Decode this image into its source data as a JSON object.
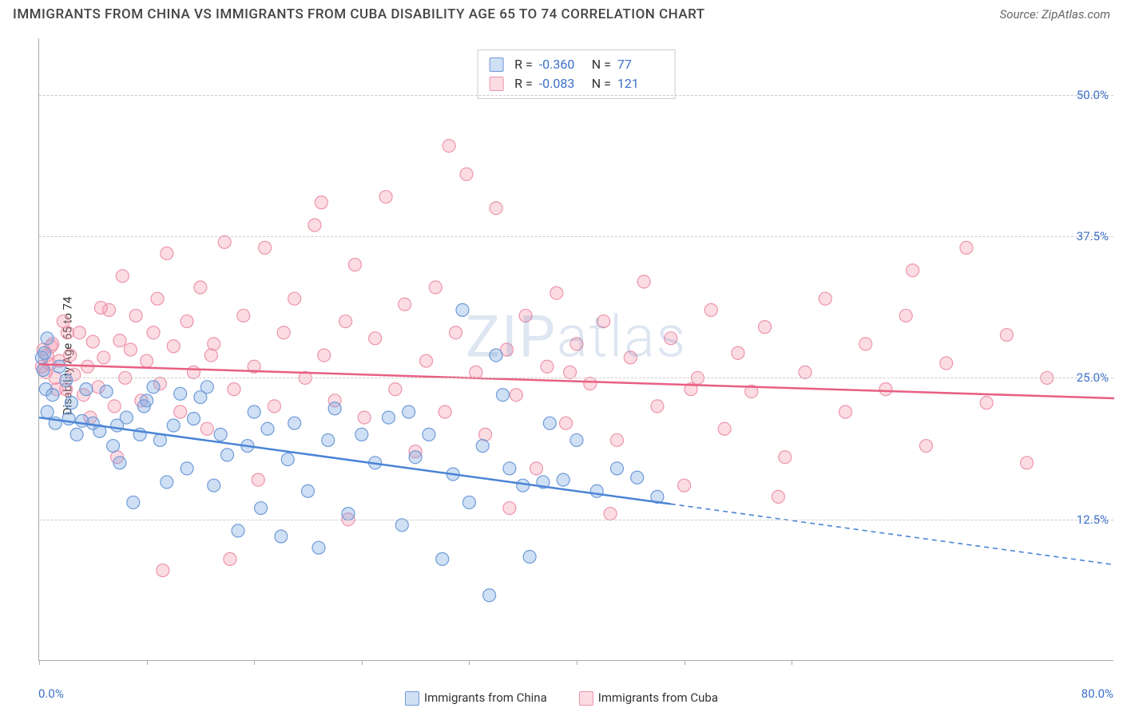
{
  "header": {
    "title": "IMMIGRANTS FROM CHINA VS IMMIGRANTS FROM CUBA DISABILITY AGE 65 TO 74 CORRELATION CHART",
    "source_prefix": "Source: ",
    "source_name": "ZipAtlas.com"
  },
  "watermark": {
    "zip": "ZIP",
    "atlas": "atlas"
  },
  "chart": {
    "type": "scatter",
    "ylabel": "Disability Age 65 to 74",
    "xlim": [
      0,
      80
    ],
    "ylim": [
      0,
      55
    ],
    "x_label_min": "0.0%",
    "x_label_max": "80.0%",
    "xtick_positions": [
      0,
      8,
      16,
      24,
      32,
      40,
      48,
      56
    ],
    "yticks": [
      {
        "value": 12.5,
        "label": "12.5%"
      },
      {
        "value": 25.0,
        "label": "25.0%"
      },
      {
        "value": 37.5,
        "label": "37.5%"
      },
      {
        "value": 50.0,
        "label": "50.0%"
      }
    ],
    "background_color": "#ffffff",
    "grid_color": "#cccccc",
    "axis_color": "#aaaaaa",
    "tick_label_color": "#3b70c9",
    "series": [
      {
        "name": "Immigrants from China",
        "color": "#4a84d6",
        "fill": "rgba(128,170,225,0.38)",
        "stroke": "#6f9bd8",
        "marker_radius": 8,
        "r_value": "-0.360",
        "n_value": "77",
        "trend": {
          "y_at_x0": 21.5,
          "y_at_x80": 8.5,
          "solid_until_x": 47
        },
        "points": [
          [
            0.2,
            26.8
          ],
          [
            0.3,
            25.7
          ],
          [
            0.4,
            27.2
          ],
          [
            0.5,
            24.0
          ],
          [
            0.6,
            28.5
          ],
          [
            0.6,
            22.0
          ],
          [
            1.0,
            23.5
          ],
          [
            1.2,
            21.0
          ],
          [
            1.5,
            26.0
          ],
          [
            2.0,
            24.8
          ],
          [
            2.2,
            21.4
          ],
          [
            2.4,
            22.8
          ],
          [
            2.8,
            20.0
          ],
          [
            3.2,
            21.2
          ],
          [
            3.5,
            24.0
          ],
          [
            4.0,
            21.0
          ],
          [
            4.5,
            20.3
          ],
          [
            5.0,
            23.8
          ],
          [
            5.5,
            19.0
          ],
          [
            5.8,
            20.8
          ],
          [
            6.0,
            17.5
          ],
          [
            6.5,
            21.5
          ],
          [
            7.0,
            14.0
          ],
          [
            7.5,
            20.0
          ],
          [
            8.0,
            23.0
          ],
          [
            8.5,
            24.2
          ],
          [
            9.0,
            19.5
          ],
          [
            9.5,
            15.8
          ],
          [
            10.0,
            20.8
          ],
          [
            10.5,
            23.6
          ],
          [
            11.0,
            17.0
          ],
          [
            11.5,
            21.4
          ],
          [
            12.0,
            23.3
          ],
          [
            13.0,
            15.5
          ],
          [
            13.5,
            20.0
          ],
          [
            14.0,
            18.2
          ],
          [
            14.8,
            11.5
          ],
          [
            15.5,
            19.0
          ],
          [
            16.0,
            22.0
          ],
          [
            16.5,
            13.5
          ],
          [
            17.0,
            20.5
          ],
          [
            18.0,
            11.0
          ],
          [
            18.5,
            17.8
          ],
          [
            19.0,
            21.0
          ],
          [
            20.0,
            15.0
          ],
          [
            20.8,
            10.0
          ],
          [
            21.5,
            19.5
          ],
          [
            22.0,
            22.3
          ],
          [
            23.0,
            13.0
          ],
          [
            24.0,
            20.0
          ],
          [
            25.0,
            17.5
          ],
          [
            26.0,
            21.5
          ],
          [
            27.0,
            12.0
          ],
          [
            28.0,
            18.0
          ],
          [
            29.0,
            20.0
          ],
          [
            30.0,
            9.0
          ],
          [
            30.8,
            16.5
          ],
          [
            31.5,
            31.0
          ],
          [
            32.0,
            14.0
          ],
          [
            33.0,
            19.0
          ],
          [
            33.5,
            5.8
          ],
          [
            34.0,
            27.0
          ],
          [
            35.0,
            17.0
          ],
          [
            36.0,
            15.5
          ],
          [
            36.5,
            9.2
          ],
          [
            37.5,
            15.8
          ],
          [
            38.0,
            21.0
          ],
          [
            39.0,
            16.0
          ],
          [
            40.0,
            19.5
          ],
          [
            41.5,
            15.0
          ],
          [
            43.0,
            17.0
          ],
          [
            44.5,
            16.2
          ],
          [
            46.0,
            14.5
          ],
          [
            34.5,
            23.5
          ],
          [
            27.5,
            22.0
          ],
          [
            12.5,
            24.2
          ],
          [
            7.8,
            22.5
          ]
        ]
      },
      {
        "name": "Immigrants from Cuba",
        "color": "#e85f82",
        "fill": "rgba(245,154,176,0.35)",
        "stroke": "#ec94ab",
        "marker_radius": 8,
        "r_value": "-0.083",
        "n_value": "121",
        "trend": {
          "y_at_x0": 26.2,
          "y_at_x80": 23.2,
          "solid_until_x": 80
        },
        "points": [
          [
            0.2,
            26.0
          ],
          [
            0.3,
            27.5
          ],
          [
            0.5,
            25.5
          ],
          [
            0.6,
            27.0
          ],
          [
            0.8,
            26.2
          ],
          [
            1.0,
            28.0
          ],
          [
            1.2,
            25.0
          ],
          [
            1.5,
            26.5
          ],
          [
            1.8,
            30.0
          ],
          [
            2.0,
            24.0
          ],
          [
            2.3,
            27.0
          ],
          [
            2.6,
            25.3
          ],
          [
            3.0,
            29.0
          ],
          [
            3.3,
            23.5
          ],
          [
            3.6,
            26.0
          ],
          [
            4.0,
            28.2
          ],
          [
            4.4,
            24.2
          ],
          [
            4.8,
            26.8
          ],
          [
            5.2,
            31.0
          ],
          [
            5.6,
            22.5
          ],
          [
            6.0,
            28.3
          ],
          [
            6.4,
            25.0
          ],
          [
            6.8,
            27.5
          ],
          [
            7.2,
            30.5
          ],
          [
            7.6,
            23.0
          ],
          [
            8.0,
            26.5
          ],
          [
            8.5,
            29.0
          ],
          [
            9.0,
            24.5
          ],
          [
            9.5,
            36.0
          ],
          [
            10.0,
            27.8
          ],
          [
            10.5,
            22.0
          ],
          [
            11.0,
            30.0
          ],
          [
            11.5,
            25.5
          ],
          [
            12.0,
            33.0
          ],
          [
            12.5,
            20.5
          ],
          [
            13.0,
            28.0
          ],
          [
            13.8,
            37.0
          ],
          [
            14.5,
            24.0
          ],
          [
            15.2,
            30.5
          ],
          [
            16.0,
            26.0
          ],
          [
            16.8,
            36.5
          ],
          [
            17.5,
            22.5
          ],
          [
            18.2,
            29.0
          ],
          [
            19.0,
            32.0
          ],
          [
            19.8,
            25.0
          ],
          [
            20.5,
            38.5
          ],
          [
            21.2,
            27.0
          ],
          [
            22.0,
            23.0
          ],
          [
            22.8,
            30.0
          ],
          [
            23.5,
            35.0
          ],
          [
            24.2,
            21.5
          ],
          [
            25.0,
            28.5
          ],
          [
            25.8,
            41.0
          ],
          [
            26.5,
            24.0
          ],
          [
            27.2,
            31.5
          ],
          [
            28.0,
            18.5
          ],
          [
            28.8,
            26.5
          ],
          [
            29.5,
            33.0
          ],
          [
            30.2,
            22.0
          ],
          [
            31.0,
            29.0
          ],
          [
            31.8,
            43.0
          ],
          [
            32.5,
            25.5
          ],
          [
            33.2,
            20.0
          ],
          [
            34.0,
            40.0
          ],
          [
            34.8,
            27.5
          ],
          [
            35.5,
            23.5
          ],
          [
            36.2,
            30.5
          ],
          [
            37.0,
            17.0
          ],
          [
            37.8,
            26.0
          ],
          [
            38.5,
            32.5
          ],
          [
            39.2,
            21.0
          ],
          [
            40.0,
            28.0
          ],
          [
            41.0,
            24.5
          ],
          [
            42.0,
            30.0
          ],
          [
            43.0,
            19.5
          ],
          [
            44.0,
            26.8
          ],
          [
            45.0,
            33.5
          ],
          [
            46.0,
            22.5
          ],
          [
            47.0,
            28.5
          ],
          [
            48.0,
            15.5
          ],
          [
            49.0,
            25.0
          ],
          [
            50.0,
            31.0
          ],
          [
            51.0,
            20.5
          ],
          [
            52.0,
            27.2
          ],
          [
            53.0,
            23.8
          ],
          [
            54.0,
            29.5
          ],
          [
            55.5,
            18.0
          ],
          [
            57.0,
            25.5
          ],
          [
            58.5,
            32.0
          ],
          [
            60.0,
            22.0
          ],
          [
            61.5,
            28.0
          ],
          [
            63.0,
            24.0
          ],
          [
            64.5,
            30.5
          ],
          [
            66.0,
            19.0
          ],
          [
            67.5,
            26.3
          ],
          [
            69.0,
            36.5
          ],
          [
            70.5,
            22.8
          ],
          [
            72.0,
            28.8
          ],
          [
            73.5,
            17.5
          ],
          [
            75.0,
            25.0
          ],
          [
            65.0,
            34.5
          ],
          [
            30.5,
            45.5
          ],
          [
            21.0,
            40.5
          ],
          [
            14.2,
            9.0
          ],
          [
            9.2,
            8.0
          ],
          [
            5.8,
            18.0
          ],
          [
            16.3,
            16.0
          ],
          [
            23.0,
            12.5
          ],
          [
            35.0,
            13.5
          ],
          [
            42.5,
            13.0
          ],
          [
            55.0,
            14.5
          ],
          [
            48.5,
            24.0
          ],
          [
            39.5,
            25.5
          ],
          [
            12.8,
            27.0
          ],
          [
            8.8,
            32.0
          ],
          [
            6.2,
            34.0
          ],
          [
            3.8,
            21.5
          ],
          [
            1.3,
            24.0
          ],
          [
            0.9,
            27.8
          ],
          [
            2.1,
            29.0
          ],
          [
            4.6,
            31.2
          ]
        ]
      }
    ]
  },
  "bottom_legend": {
    "items": [
      {
        "label": "Immigrants from China",
        "color_key": 0
      },
      {
        "label": "Immigrants from Cuba",
        "color_key": 1
      }
    ]
  },
  "stats_legend": {
    "r_prefix": "R = ",
    "n_prefix": "N = "
  }
}
